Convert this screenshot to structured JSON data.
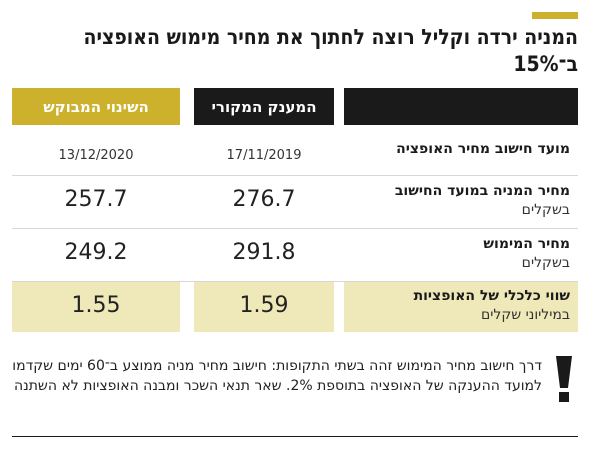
{
  "title": "המניה ירדה וקליל רוצה לחתוך את מחיר מימוש האופציה ב־15%",
  "chart_data": {
    "type": "table",
    "columns": [
      "",
      "המענק המקורי",
      "השינוי המבוקש"
    ],
    "rows": [
      {
        "label": "מועד חישוב מחיר האופציה",
        "sublabel": "",
        "original": "17/11/2019",
        "requested": "13/12/2020"
      },
      {
        "label": "מחיר המניה במועד החישוב",
        "sublabel": "בשקלים",
        "original": "276.7",
        "requested": "257.7"
      },
      {
        "label": "מחיר המימוש",
        "sublabel": "בשקלים",
        "original": "291.8",
        "requested": "249.2"
      },
      {
        "label": "שווי כלכלי של האופציות",
        "sublabel": "במיליוני שקלים",
        "original": "1.59",
        "requested": "1.55"
      }
    ]
  },
  "note": "דרך חישוב מחיר המימוש זהה בשתי התקופות: חישוב מחיר מניה ממוצע ב־60 ימים שקדמו למועד ההענקה של האופציה בתוספת 2%. שאר תנאי השכר ומבנה האופציות לא השתנה",
  "note_icon": "exclamation-icon",
  "colors": {
    "accent": "#cdb02b",
    "header_dark": "#1a1a1a",
    "highlight_row": "#efe8b9"
  }
}
